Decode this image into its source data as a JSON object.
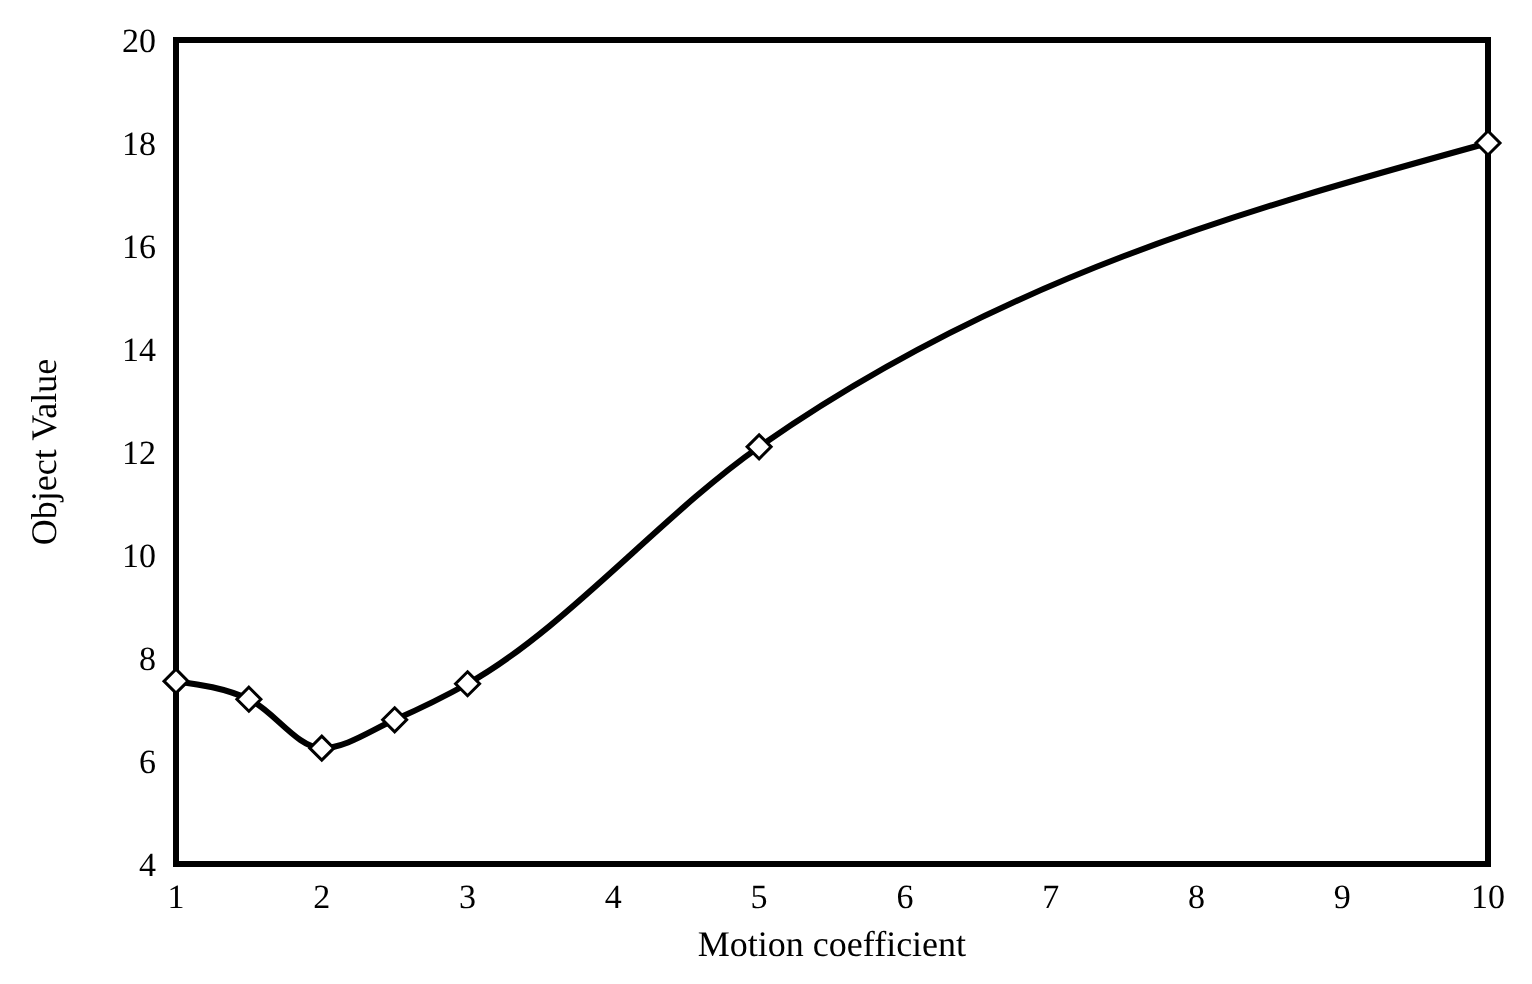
{
  "chart_data": {
    "type": "line",
    "xlabel": "Motion coefficient",
    "ylabel": "Object Value",
    "x": [
      1,
      1.5,
      2,
      2.5,
      3,
      5,
      10
    ],
    "series": [
      {
        "color": "#000000",
        "values": [
          7.55,
          7.2,
          6.25,
          6.8,
          7.5,
          12.1,
          18
        ]
      }
    ],
    "xlim": [
      1,
      10
    ],
    "xticks": [
      1,
      2,
      3,
      4,
      5,
      6,
      7,
      8,
      9,
      10
    ],
    "ylim": [
      4,
      20
    ],
    "yticks": [
      4,
      6,
      8,
      10,
      12,
      14,
      16,
      18,
      20
    ],
    "marker": "diamond",
    "line_style": "solid",
    "grid": false
  }
}
